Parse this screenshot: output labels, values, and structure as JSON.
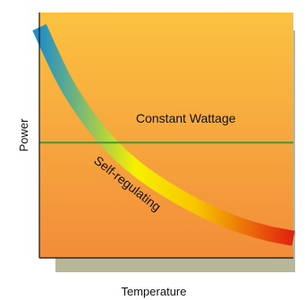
{
  "chart_data": {
    "type": "line",
    "xlabel": "Temperature",
    "ylabel": "Power",
    "grid": false,
    "legend": "none",
    "series": [
      {
        "name": "Constant Wattage",
        "color": "#3a9a3a",
        "x": [
          0,
          1
        ],
        "y": [
          0.47,
          0.47
        ]
      },
      {
        "name": "Self-regulating",
        "colors": [
          "#1f8fc8",
          "#f7f000",
          "#e02010"
        ],
        "x": [
          0,
          0.1,
          0.2,
          0.3,
          0.4,
          0.5,
          0.6,
          0.7,
          0.8,
          0.9,
          1
        ],
        "y": [
          0.94,
          0.72,
          0.56,
          0.44,
          0.35,
          0.28,
          0.22,
          0.17,
          0.13,
          0.1,
          0.08
        ]
      }
    ],
    "xlim": [
      0,
      1
    ],
    "ylim": [
      0,
      1
    ]
  },
  "colors": {
    "plot_top": "#fbc240",
    "plot_bottom": "#f28c3a",
    "shadow": "#b7b79a",
    "axis": "#111111"
  }
}
